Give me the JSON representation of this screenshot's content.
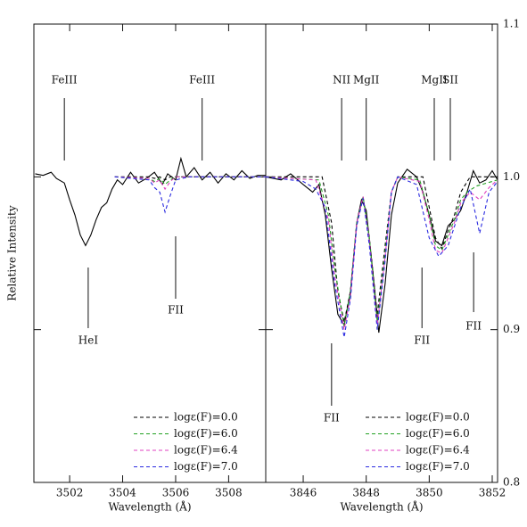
{
  "chart_data": [
    {
      "type": "line",
      "ylabel": "Relative Intensity",
      "xlabel": "Wavelength (Å)",
      "xlim": [
        3500.65,
        3509.4
      ],
      "xticks": [
        3502,
        3504,
        3506,
        3508
      ],
      "ylim": [
        0.8,
        1.1
      ],
      "yticks": [
        0.8,
        0.9,
        1,
        1.1
      ],
      "legend": "lower right",
      "series": [
        {
          "color": "#000000",
          "style": "solid",
          "x": [
            3500.7,
            3501.0,
            3501.3,
            3501.5,
            3501.8,
            3502.0,
            3502.2,
            3502.4,
            3502.6,
            3502.8,
            3503.0,
            3503.2,
            3503.4,
            3503.6,
            3503.8,
            3504.0,
            3504.3,
            3504.6,
            3504.9,
            3505.2,
            3505.5,
            3505.7,
            3506.0,
            3506.2,
            3506.4,
            3506.7,
            3507.0,
            3507.3,
            3507.6,
            3507.9,
            3508.2,
            3508.5,
            3508.8,
            3509.1,
            3509.4
          ],
          "values": [
            1.002,
            1.001,
            1.003,
            0.999,
            0.996,
            0.985,
            0.975,
            0.962,
            0.955,
            0.962,
            0.972,
            0.98,
            0.983,
            0.992,
            0.998,
            0.995,
            1.003,
            0.996,
            0.999,
            1.003,
            0.995,
            1.002,
            0.998,
            1.012,
            1.0,
            1.006,
            0.998,
            1.003,
            0.996,
            1.002,
            0.998,
            1.004,
            0.999,
            1.001,
            1.001
          ]
        },
        {
          "name": "logε(F)=0.0",
          "color": "#000000",
          "style": "dashed",
          "x": [
            3503.7,
            3505.0,
            3505.2,
            3505.4,
            3505.6,
            3505.8,
            3506.0,
            3506.5,
            3509.4
          ],
          "values": [
            1.0,
            1.0,
            0.999,
            1.0,
            0.998,
            1.0,
            1.0,
            1.0,
            1.0
          ]
        },
        {
          "name": "logε(F)=6.0",
          "color": "#22a022",
          "style": "dashed",
          "x": [
            3503.7,
            3505.0,
            3505.2,
            3505.4,
            3505.6,
            3505.8,
            3506.0,
            3506.5,
            3509.4
          ],
          "values": [
            1.0,
            0.999,
            0.997,
            0.999,
            0.995,
            0.998,
            1.0,
            1.0,
            1.0
          ]
        },
        {
          "name": "logε(F)=6.4",
          "color": "#e040c0",
          "style": "dashed",
          "x": [
            3503.7,
            3505.0,
            3505.2,
            3505.4,
            3505.6,
            3505.8,
            3506.0,
            3506.5,
            3509.4
          ],
          "values": [
            1.0,
            0.999,
            0.996,
            0.998,
            0.992,
            0.997,
            1.0,
            1.0,
            1.0
          ]
        },
        {
          "name": "logε(F)=7.0",
          "color": "#2a2ae0",
          "style": "dashed",
          "x": [
            3503.7,
            3505.0,
            3505.2,
            3505.4,
            3505.6,
            3505.8,
            3506.0,
            3506.5,
            3509.4
          ],
          "values": [
            1.0,
            0.998,
            0.993,
            0.99,
            0.977,
            0.988,
            0.998,
            1.0,
            1.0
          ]
        }
      ],
      "annotations": [
        {
          "text": "FeIII",
          "x": 3501.8,
          "side": "top"
        },
        {
          "text": "FeIII",
          "x": 3507.0,
          "side": "top"
        },
        {
          "text": "HeI",
          "x": 3502.7,
          "side": "bottom"
        },
        {
          "text": "FII",
          "x": 3506.0,
          "side": "bottom"
        }
      ]
    },
    {
      "type": "line",
      "xlabel": "Wavelength (Å)",
      "xlim": [
        3844.81,
        3852.17
      ],
      "xticks": [
        3846,
        3848,
        3850,
        3852
      ],
      "ylim": [
        0.8,
        1.1
      ],
      "yticks": [
        {
          "value": 0.8,
          "label": "0.8"
        },
        0.9,
        {
          "value": 1.0,
          "label": "1.0"
        },
        1.1
      ],
      "legend": "lower right",
      "series": [
        {
          "color": "#000000",
          "style": "solid",
          "x": [
            3844.8,
            3845.3,
            3845.6,
            3846.0,
            3846.3,
            3846.5,
            3846.7,
            3846.9,
            3847.1,
            3847.3,
            3847.5,
            3847.7,
            3847.85,
            3848.0,
            3848.2,
            3848.4,
            3848.6,
            3848.8,
            3849.0,
            3849.3,
            3849.6,
            3849.8,
            3850.0,
            3850.2,
            3850.4,
            3850.6,
            3850.8,
            3851.0,
            3851.2,
            3851.4,
            3851.6,
            3851.8,
            3852.0,
            3852.17
          ],
          "values": [
            1.0,
            0.998,
            1.002,
            0.995,
            0.99,
            0.995,
            0.975,
            0.94,
            0.91,
            0.903,
            0.925,
            0.97,
            0.985,
            0.978,
            0.94,
            0.898,
            0.93,
            0.975,
            0.996,
            1.005,
            1.0,
            0.99,
            0.975,
            0.958,
            0.955,
            0.968,
            0.972,
            0.978,
            0.99,
            1.004,
            0.996,
            0.998,
            1.004,
            0.998
          ]
        },
        {
          "name": "logε(F)=0.0",
          "color": "#000000",
          "style": "dashed",
          "x": [
            3844.8,
            3846.6,
            3846.9,
            3847.1,
            3847.3,
            3847.5,
            3847.7,
            3847.9,
            3848.1,
            3848.35,
            3848.6,
            3848.8,
            3849.0,
            3849.8,
            3850.0,
            3850.2,
            3850.4,
            3850.6,
            3850.8,
            3851.0,
            3851.3,
            3852.17
          ],
          "values": [
            1.0,
            1.0,
            0.97,
            0.925,
            0.905,
            0.925,
            0.97,
            0.987,
            0.96,
            0.91,
            0.955,
            0.99,
            1.0,
            1.0,
            0.98,
            0.96,
            0.953,
            0.965,
            0.975,
            0.99,
            1.0,
            1.0
          ]
        },
        {
          "name": "logε(F)=6.0",
          "color": "#22a022",
          "style": "dashed",
          "x": [
            3844.8,
            3846.5,
            3846.8,
            3847.0,
            3847.3,
            3847.5,
            3847.7,
            3847.9,
            3848.1,
            3848.35,
            3848.6,
            3848.8,
            3849.0,
            3849.7,
            3850.0,
            3850.2,
            3850.4,
            3850.6,
            3850.8,
            3851.0,
            3851.2,
            3851.5,
            3852.0,
            3852.17
          ],
          "values": [
            1.0,
            0.998,
            0.975,
            0.94,
            0.902,
            0.925,
            0.97,
            0.987,
            0.96,
            0.905,
            0.95,
            0.99,
            1.0,
            0.998,
            0.975,
            0.955,
            0.952,
            0.962,
            0.972,
            0.985,
            0.99,
            0.994,
            0.997,
            0.998
          ]
        },
        {
          "name": "logε(F)=6.4",
          "color": "#e040c0",
          "style": "dashed",
          "x": [
            3844.8,
            3846.4,
            3846.8,
            3847.0,
            3847.3,
            3847.5,
            3847.7,
            3847.9,
            3848.1,
            3848.35,
            3848.6,
            3848.8,
            3849.0,
            3849.7,
            3850.0,
            3850.2,
            3850.4,
            3850.6,
            3850.8,
            3851.0,
            3851.3,
            3851.6,
            3851.9,
            3852.17
          ],
          "values": [
            1.0,
            0.998,
            0.972,
            0.935,
            0.9,
            0.922,
            0.97,
            0.987,
            0.958,
            0.903,
            0.948,
            0.99,
            1.0,
            0.997,
            0.972,
            0.952,
            0.95,
            0.96,
            0.97,
            0.983,
            0.99,
            0.985,
            0.993,
            0.998
          ]
        },
        {
          "name": "logε(F)=7.0",
          "color": "#2a2ae0",
          "style": "dashed",
          "x": [
            3844.8,
            3846.0,
            3846.4,
            3846.7,
            3847.0,
            3847.3,
            3847.5,
            3847.7,
            3847.9,
            3848.1,
            3848.35,
            3848.6,
            3848.8,
            3849.0,
            3849.6,
            3850.0,
            3850.3,
            3850.6,
            3851.0,
            3851.3,
            3851.6,
            3851.9,
            3852.17
          ],
          "values": [
            1.0,
            0.997,
            0.992,
            0.98,
            0.93,
            0.895,
            0.92,
            0.968,
            0.986,
            0.955,
            0.9,
            0.945,
            0.99,
            1.0,
            0.995,
            0.96,
            0.948,
            0.955,
            0.98,
            0.992,
            0.963,
            0.99,
            0.997
          ]
        }
      ],
      "annotations": [
        {
          "text": "NII",
          "x": 3847.22,
          "side": "top"
        },
        {
          "text": "MgII",
          "x": 3848.0,
          "side": "top"
        },
        {
          "text": "MgII",
          "x": 3850.16,
          "side": "top"
        },
        {
          "text": "SII",
          "x": 3850.67,
          "side": "top"
        },
        {
          "text": "FII",
          "x": 3846.9,
          "side": "bottom"
        },
        {
          "text": "FII",
          "x": 3849.77,
          "side": "bottom"
        },
        {
          "text": "FII",
          "x": 3851.41,
          "side": "bottom"
        }
      ]
    }
  ]
}
